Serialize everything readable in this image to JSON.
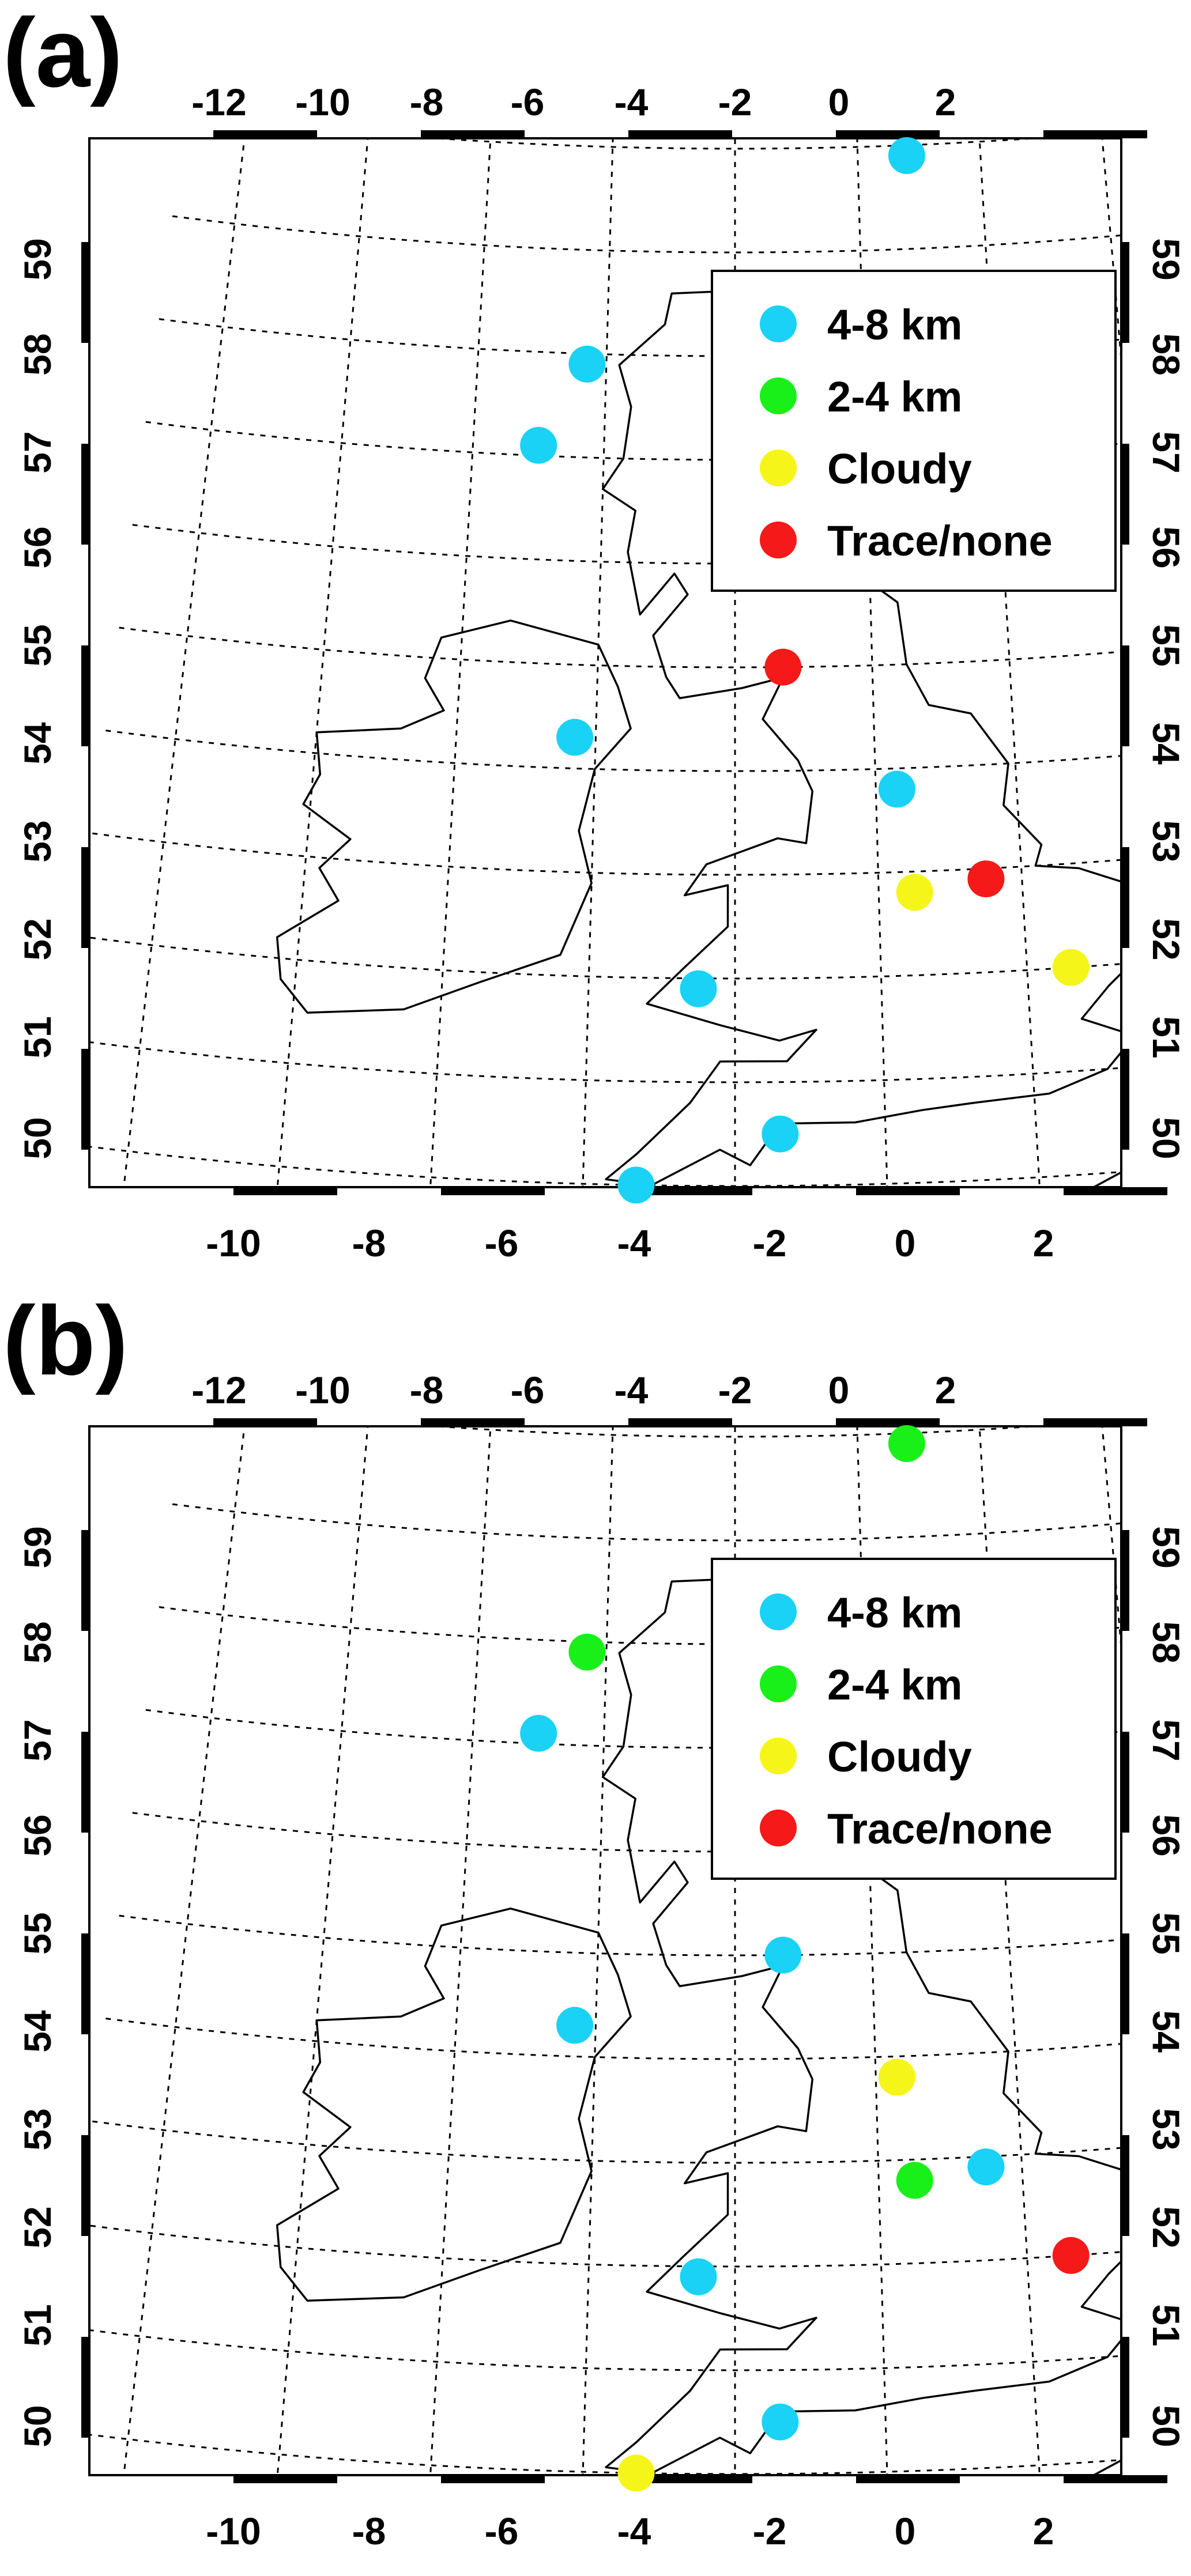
{
  "colors": {
    "4-8 km": "#19d2f5",
    "2-4 km": "#19f019",
    "Cloudy": "#f5f519",
    "Trace/none": "#f51919"
  },
  "ticks": {
    "top": [
      "-12",
      "-10",
      "-8",
      "-6",
      "-4",
      "-2",
      "0",
      "2"
    ],
    "bottom": [
      "-10",
      "-8",
      "-6",
      "-4",
      "-2",
      "0",
      "2"
    ],
    "left": [
      "59",
      "58",
      "57",
      "56",
      "55",
      "54",
      "53",
      "52",
      "51",
      "50"
    ],
    "right": [
      "59",
      "58",
      "57",
      "56",
      "55",
      "54",
      "53",
      "52",
      "51",
      "50"
    ]
  },
  "legend": [
    "4-8 km",
    "2-4 km",
    "Cloudy",
    "Trace/none"
  ],
  "panels": [
    {
      "label": "(a)",
      "stations": [
        {
          "lon": -1.2,
          "lat": 59.9,
          "category": "4-8 km"
        },
        {
          "lon": -6.3,
          "lat": 57.9,
          "category": "4-8 km"
        },
        {
          "lon": -7.0,
          "lat": 57.1,
          "category": "4-8 km"
        },
        {
          "lon": -6.3,
          "lat": 54.3,
          "category": "4-8 km"
        },
        {
          "lon": -3.3,
          "lat": 55.0,
          "category": "Trace/none"
        },
        {
          "lon": -1.7,
          "lat": 53.8,
          "category": "4-8 km"
        },
        {
          "lon": -1.5,
          "lat": 52.8,
          "category": "Cloudy"
        },
        {
          "lon": -0.5,
          "lat": 52.9,
          "category": "Trace/none"
        },
        {
          "lon": 0.6,
          "lat": 52.0,
          "category": "Cloudy"
        },
        {
          "lon": -4.5,
          "lat": 51.9,
          "category": "4-8 km"
        },
        {
          "lon": -3.4,
          "lat": 50.5,
          "category": "4-8 km"
        },
        {
          "lon": -5.3,
          "lat": 50.0,
          "category": "4-8 km"
        }
      ]
    },
    {
      "label": "(b)",
      "stations": [
        {
          "lon": -1.2,
          "lat": 59.9,
          "category": "2-4 km"
        },
        {
          "lon": -6.3,
          "lat": 57.9,
          "category": "2-4 km"
        },
        {
          "lon": -7.0,
          "lat": 57.1,
          "category": "4-8 km"
        },
        {
          "lon": -6.3,
          "lat": 54.3,
          "category": "4-8 km"
        },
        {
          "lon": -3.3,
          "lat": 55.0,
          "category": "4-8 km"
        },
        {
          "lon": -1.7,
          "lat": 53.8,
          "category": "Cloudy"
        },
        {
          "lon": -1.5,
          "lat": 52.8,
          "category": "2-4 km"
        },
        {
          "lon": -0.5,
          "lat": 52.9,
          "category": "4-8 km"
        },
        {
          "lon": 0.6,
          "lat": 52.0,
          "category": "Trace/none"
        },
        {
          "lon": -4.5,
          "lat": 51.9,
          "category": "4-8 km"
        },
        {
          "lon": -3.4,
          "lat": 50.5,
          "category": "4-8 km"
        },
        {
          "lon": -5.3,
          "lat": 50.0,
          "category": "Cloudy"
        }
      ]
    }
  ]
}
